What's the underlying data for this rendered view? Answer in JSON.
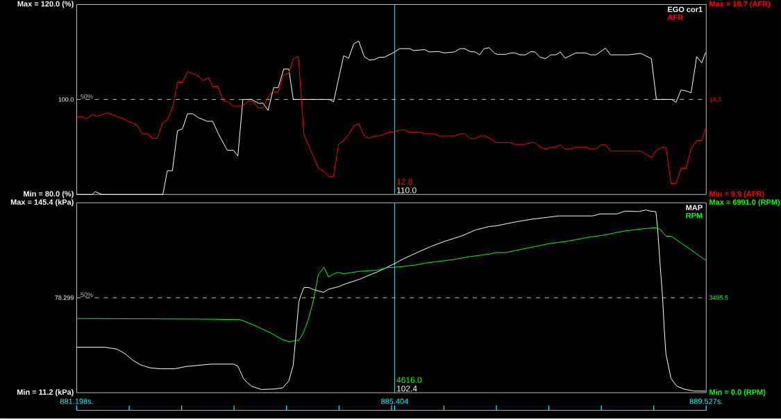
{
  "chart_data": [
    {
      "type": "line",
      "xlim": [
        881.198,
        889.527
      ],
      "ylim": [
        80,
        120
      ],
      "yticks": [
        {
          "value": 80,
          "label": "Min = 80.0 (%)"
        },
        {
          "value": 100,
          "label": "100.0"
        },
        {
          "value": 120,
          "label": "Max = 120.0 (%)"
        }
      ],
      "y2lim": [
        9.9,
        18.7
      ],
      "y2ticks": [
        {
          "value": 9.9,
          "label": "Min = 9.9 (AFR)"
        },
        {
          "value": 14.3,
          "label": "14.3"
        },
        {
          "value": 18.7,
          "label": "Max = 18.7 (AFR)"
        }
      ],
      "tick_labels": "y",
      "legend": "top right",
      "ref_lines": [
        {
          "axis": "y",
          "value": 100,
          "color": "#c0c0c0",
          "line_style": "dashed"
        },
        {
          "axis": "x",
          "value": 885.404,
          "color": "#55d5e5"
        }
      ],
      "annotations": [
        {
          "text": "50%",
          "x": 881.33,
          "y": 100
        },
        "12.8",
        "110.0"
      ],
      "series": [
        {
          "name": "EGO cor1",
          "color": "#ffffff",
          "x": [
            881.198,
            881.405,
            881.442,
            881.531,
            882.338,
            882.397,
            882.464,
            882.531,
            882.597,
            882.664,
            882.731,
            882.805,
            882.923,
            882.997,
            883.071,
            883.19,
            883.271,
            883.33,
            883.397,
            883.515,
            883.604,
            883.663,
            883.73,
            883.804,
            883.863,
            883.937,
            884.004,
            884.063,
            884.544,
            884.596,
            884.73,
            884.796,
            884.863,
            884.929,
            885.003,
            885.07,
            885.137,
            885.203,
            885.27,
            885.404,
            885.47,
            885.603,
            885.655,
            885.803,
            885.862,
            885.988,
            886.062,
            886.195,
            886.27,
            886.329,
            886.403,
            886.469,
            886.529,
            886.588,
            886.655,
            886.729,
            886.766,
            886.877,
            886.936,
            886.995,
            887.062,
            887.136,
            887.21,
            887.262,
            887.328,
            887.402,
            887.469,
            887.536,
            887.595,
            887.661,
            887.802,
            887.935,
            887.995,
            888.069,
            888.194,
            888.261,
            888.498,
            888.661,
            888.802,
            888.868,
            889.068,
            889.127,
            889.194,
            889.261,
            889.327,
            889.401,
            889.468,
            889.52
          ],
          "values": [
            80.0,
            80.0,
            80.6,
            80.0,
            80.0,
            85.0,
            85.0,
            93.4,
            93.8,
            97.0,
            97.0,
            96.2,
            95.4,
            95.4,
            92.8,
            89.3,
            89.3,
            88.1,
            100.0,
            100.0,
            99.2,
            99.2,
            97.7,
            102.5,
            102.5,
            106.4,
            106.4,
            100.0,
            100.0,
            99.5,
            109.2,
            108.7,
            111.7,
            112.3,
            109.0,
            108.3,
            108.4,
            108.9,
            108.9,
            110.0,
            110.7,
            110.7,
            110.3,
            110.5,
            110.0,
            110.1,
            109.8,
            110.0,
            110.7,
            110.7,
            110.1,
            110.0,
            109.4,
            110.7,
            110.9,
            109.7,
            109.5,
            109.5,
            109.8,
            109.8,
            109.4,
            109.4,
            110.1,
            110.0,
            108.9,
            108.6,
            109.4,
            109.4,
            110.0,
            108.7,
            109.8,
            109.8,
            109.4,
            109.4,
            110.8,
            109.4,
            109.4,
            109.7,
            108.6,
            100.0,
            100.0,
            99.4,
            102.0,
            101.8,
            101.4,
            109.0,
            107.7,
            109.9
          ]
        },
        {
          "name": "AFR",
          "color": "#ff0000",
          "axis": "y2",
          "x": [
            881.198,
            881.265,
            881.331,
            881.398,
            881.465,
            881.539,
            881.598,
            881.664,
            881.739,
            881.805,
            881.872,
            881.998,
            882.064,
            882.138,
            882.198,
            882.264,
            882.331,
            882.405,
            882.471,
            882.531,
            882.597,
            882.664,
            882.731,
            882.797,
            882.871,
            882.938,
            882.997,
            883.064,
            883.138,
            883.197,
            883.264,
            883.39,
            883.464,
            883.53,
            883.597,
            883.663,
            883.73,
            883.789,
            883.863,
            883.93,
            884.004,
            884.063,
            884.13,
            884.204,
            884.396,
            884.47,
            884.537,
            884.596,
            884.663,
            884.73,
            884.804,
            884.863,
            884.929,
            885.003,
            885.07,
            885.137,
            885.203,
            885.329,
            885.404,
            885.47,
            885.537,
            885.603,
            885.736,
            885.803,
            885.936,
            885.996,
            886.195,
            886.27,
            886.329,
            886.403,
            886.469,
            886.529,
            886.603,
            886.677,
            886.743,
            886.928,
            886.995,
            887.128,
            887.195,
            887.262,
            887.328,
            887.402,
            887.469,
            887.536,
            887.595,
            887.661,
            887.728,
            887.802,
            887.935,
            887.995,
            888.069,
            888.135,
            888.194,
            888.261,
            888.661,
            888.802,
            888.868,
            888.935,
            888.994,
            889.061,
            889.127,
            889.194,
            889.261,
            889.327,
            889.401,
            889.468,
            889.52
          ],
          "values": [
            13.5,
            13.5,
            13.4,
            13.6,
            13.52,
            13.6,
            13.69,
            13.6,
            13.5,
            13.42,
            13.3,
            13.11,
            12.71,
            12.71,
            12.5,
            12.5,
            13.19,
            13.4,
            13.99,
            15.1,
            15.1,
            15.59,
            15.5,
            15.41,
            15.18,
            15.32,
            14.91,
            14.91,
            14.22,
            14.22,
            13.99,
            13.99,
            14.22,
            14.22,
            13.91,
            13.91,
            14.4,
            14.69,
            14.61,
            15.42,
            15.53,
            16.19,
            16.3,
            12.68,
            11.11,
            10.97,
            10.72,
            10.72,
            12.23,
            12.41,
            12.71,
            13.09,
            13.17,
            12.62,
            12.5,
            12.61,
            12.61,
            12.78,
            12.8,
            12.89,
            12.89,
            12.78,
            12.78,
            12.71,
            12.71,
            12.61,
            12.61,
            12.71,
            12.71,
            12.49,
            12.49,
            12.61,
            12.61,
            12.48,
            12.3,
            12.3,
            12.22,
            12.22,
            12.3,
            12.3,
            12.1,
            12.0,
            12.09,
            12.09,
            12.2,
            12.0,
            12.0,
            12.09,
            12.09,
            12.0,
            12.0,
            12.2,
            12.2,
            11.91,
            11.91,
            11.61,
            11.94,
            12.09,
            12.09,
            10.41,
            10.41,
            11.11,
            11.11,
            12.03,
            12.4,
            12.4,
            12.95
          ]
        }
      ]
    },
    {
      "type": "line",
      "xlim": [
        881.198,
        889.527
      ],
      "xticks": [
        {
          "value": 881.198,
          "label": "881.198s."
        },
        {
          "value": 881.892,
          "label": null
        },
        {
          "value": 882.586,
          "label": null
        },
        {
          "value": 883.28,
          "label": null
        },
        {
          "value": 883.974,
          "label": null
        },
        {
          "value": 884.668,
          "label": null
        },
        {
          "value": 885.363,
          "label": null
        },
        {
          "value": 885.404,
          "label": "885.404"
        },
        {
          "value": 886.057,
          "label": null
        },
        {
          "value": 886.751,
          "label": null
        },
        {
          "value": 887.445,
          "label": null
        },
        {
          "value": 888.139,
          "label": null
        },
        {
          "value": 888.833,
          "label": null
        },
        {
          "value": 889.527,
          "label": "889.527s."
        }
      ],
      "ylim": [
        11.2,
        145.4
      ],
      "yticks": [
        {
          "value": 11.2,
          "label": "Min = 11.2 (kPa)"
        },
        {
          "value": 78.299,
          "label": "78.299"
        },
        {
          "value": 145.4,
          "label": "Max = 145.4 (kPa)"
        }
      ],
      "y2lim": [
        0,
        6991
      ],
      "y2ticks": [
        {
          "value": 0,
          "label": "Min = 0.0 (RPM)"
        },
        {
          "value": 3495.5,
          "label": "3495.5"
        },
        {
          "value": 6991,
          "label": "Max = 6991.0 (RPM)"
        }
      ],
      "legend": "top right",
      "ref_lines": [
        {
          "axis": "y",
          "value": 78.299,
          "color": "#c0c0c0",
          "line_style": "dashed"
        },
        {
          "axis": "x",
          "value": 885.404,
          "color": "#55d5e5"
        }
      ],
      "annotations": [
        {
          "text": "50%",
          "x": 881.33,
          "y": 78.299
        },
        "4616.0",
        "102.4"
      ],
      "series": [
        {
          "name": "MAP",
          "color": "#ffffff",
          "x": [
            881.198,
            881.568,
            881.731,
            881.842,
            881.938,
            882.049,
            882.175,
            882.309,
            882.494,
            882.642,
            882.842,
            882.975,
            883.271,
            883.33,
            883.404,
            883.456,
            883.515,
            883.641,
            883.812,
            883.923,
            884.004,
            884.063,
            884.137,
            884.159,
            884.204,
            884.271,
            884.33,
            884.463,
            884.53,
            884.663,
            884.73,
            884.922,
            885.174,
            885.404,
            885.514,
            885.729,
            885.885,
            886.062,
            886.284,
            886.477,
            886.655,
            886.751,
            886.958,
            887.21,
            887.454,
            887.58,
            888.024,
            888.12,
            888.343,
            888.454,
            888.639,
            888.728,
            888.787,
            888.861,
            888.883,
            888.92,
            888.95,
            888.972,
            888.994,
            889.061,
            889.135,
            889.231,
            889.364,
            889.52
          ],
          "values": [
            43.3,
            43.3,
            42.0,
            38.6,
            34.2,
            30.7,
            28.7,
            28.1,
            28.1,
            29.7,
            30.7,
            31.4,
            31.4,
            30.0,
            21.3,
            18.2,
            15.7,
            13.5,
            13.8,
            14.6,
            19.5,
            30.7,
            75.3,
            79.3,
            85.5,
            85.5,
            84.0,
            82.1,
            84.3,
            86.1,
            87.7,
            91.0,
            96.5,
            102.4,
            105.6,
            110.9,
            114.5,
            118.1,
            121.8,
            126.2,
            128.6,
            129.1,
            131.4,
            133.7,
            135.3,
            136.1,
            136.1,
            137.5,
            137.5,
            139.5,
            139.2,
            140.3,
            139.5,
            139.1,
            127.8,
            99.6,
            78.5,
            55.8,
            38.6,
            21.3,
            15.9,
            13.8,
            12.4,
            12.3
          ]
        },
        {
          "name": "RPM",
          "color": "#00ff00",
          "axis": "y2",
          "x": [
            881.198,
            882.827,
            883.36,
            883.508,
            883.641,
            883.767,
            883.915,
            884.011,
            884.137,
            884.196,
            884.256,
            884.322,
            884.396,
            884.47,
            884.53,
            884.589,
            884.655,
            884.73,
            884.922,
            885.174,
            885.322,
            885.404,
            885.662,
            885.81,
            886.158,
            886.403,
            886.655,
            886.751,
            886.877,
            887.158,
            887.454,
            887.698,
            887.95,
            888.194,
            888.439,
            888.69,
            888.838,
            888.876,
            888.92,
            888.994,
            889.061,
            889.179,
            889.305,
            889.431,
            889.52
          ],
          "values": [
            2730,
            2710,
            2690,
            2530,
            2360,
            2200,
            1960,
            1880,
            1930,
            2200,
            2650,
            3300,
            4360,
            4610,
            4260,
            4360,
            4430,
            4380,
            4460,
            4510,
            4610,
            4616,
            4690,
            4770,
            4890,
            5010,
            5100,
            5160,
            5160,
            5320,
            5490,
            5580,
            5710,
            5810,
            5950,
            6030,
            6070,
            6060,
            6010,
            5760,
            5760,
            5540,
            5300,
            5050,
            4870
          ]
        }
      ]
    }
  ]
}
